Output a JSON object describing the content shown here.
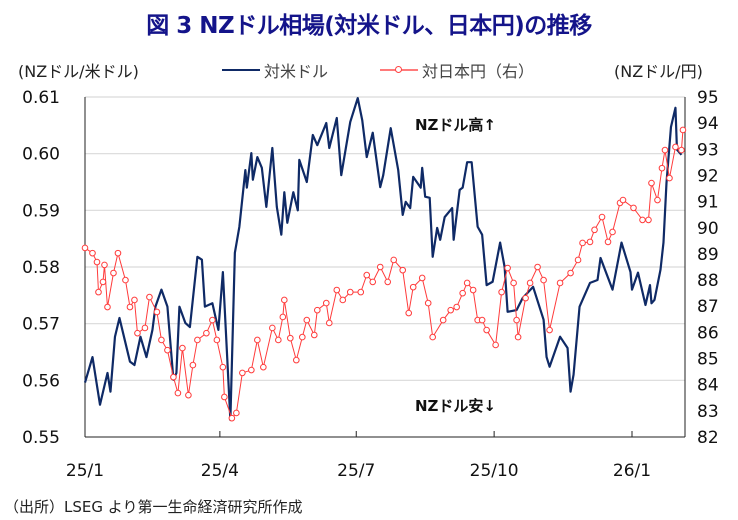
{
  "title": "図 3  NZドル相場(対米ドル、日本円)の推移",
  "source": "（出所）LSEG より第一生命経済研究所作成",
  "chart_data": {
    "type": "line",
    "title": "図 3  NZドル相場(対米ドル、日本円)の推移",
    "ylabel_left": "(NZドル/米ドル)",
    "ylabel_right": "(NZドル/円)",
    "x_unit": "days since 2025-01-01",
    "xlim": [
      0,
      400
    ],
    "x_ticks": [
      {
        "day": 0,
        "label": "25/1"
      },
      {
        "day": 90,
        "label": "25/4"
      },
      {
        "day": 181,
        "label": "25/7"
      },
      {
        "day": 273,
        "label": "25/10"
      },
      {
        "day": 365,
        "label": "26/1"
      }
    ],
    "ylim_left": [
      0.55,
      0.61
    ],
    "yticks_left": [
      "0.55",
      "0.56",
      "0.57",
      "0.58",
      "0.59",
      "0.60",
      "0.61"
    ],
    "ylim_right": [
      82,
      95
    ],
    "yticks_right": [
      "82",
      "83",
      "84",
      "85",
      "86",
      "87",
      "88",
      "89",
      "90",
      "91",
      "92",
      "93",
      "94",
      "95"
    ],
    "grid": true,
    "legend_position": "top",
    "annotations": {
      "high": "NZドル高↑",
      "low": "NZドル安↓"
    },
    "colors": {
      "usd": "#0f2a66",
      "jpy": "#ff3b3b",
      "grid": "#d9d9d9"
    },
    "series": [
      {
        "name": "対米ドル",
        "axis": "left",
        "x": [
          0,
          5,
          10,
          15,
          17,
          20,
          23,
          27,
          30,
          33,
          37,
          41,
          45,
          47,
          51,
          55,
          59,
          61,
          63,
          67,
          70,
          75,
          78,
          80,
          85,
          89,
          92,
          97,
          100,
          103,
          107,
          108,
          111,
          112,
          115,
          118,
          121,
          125,
          128,
          131,
          133,
          135,
          139,
          142,
          143,
          148,
          152,
          155,
          161,
          163,
          168,
          171,
          177,
          182,
          185,
          188,
          192,
          197,
          199,
          204,
          209,
          212,
          214,
          217,
          219,
          224,
          225,
          227,
          230,
          232,
          235,
          237,
          240,
          245,
          246,
          250,
          252,
          255,
          258,
          262,
          265,
          268,
          272,
          277,
          280,
          282,
          288,
          292,
          299,
          306,
          308,
          310,
          317,
          322,
          324,
          326,
          330,
          337,
          342,
          344,
          352,
          358,
          364,
          365,
          369,
          374,
          377,
          378,
          380,
          384,
          386,
          388,
          391,
          394,
          395,
          398
        ],
        "values": [
          0.5596,
          0.5641,
          0.5557,
          0.5613,
          0.558,
          0.5677,
          0.571,
          0.5666,
          0.5633,
          0.5627,
          0.5677,
          0.5641,
          0.5689,
          0.573,
          0.576,
          0.573,
          0.5601,
          0.5613,
          0.573,
          0.5701,
          0.5694,
          0.5818,
          0.5813,
          0.573,
          0.5736,
          0.5689,
          0.5791,
          0.553,
          0.5825,
          0.5871,
          0.5971,
          0.594,
          0.6001,
          0.5954,
          0.5994,
          0.5975,
          0.5906,
          0.601,
          0.5906,
          0.5857,
          0.5932,
          0.5878,
          0.5932,
          0.59,
          0.5989,
          0.595,
          0.6033,
          0.6015,
          0.6054,
          0.601,
          0.6063,
          0.5962,
          0.6056,
          0.6098,
          0.6059,
          0.5994,
          0.6037,
          0.5941,
          0.5962,
          0.6045,
          0.5971,
          0.5892,
          0.5915,
          0.5904,
          0.5959,
          0.594,
          0.5975,
          0.5924,
          0.5922,
          0.5818,
          0.5869,
          0.5848,
          0.5888,
          0.5904,
          0.5848,
          0.5936,
          0.594,
          0.5985,
          0.5985,
          0.5871,
          0.5857,
          0.5768,
          0.5774,
          0.5843,
          0.58,
          0.5721,
          0.5724,
          0.5745,
          0.5765,
          0.5707,
          0.5641,
          0.5624,
          0.5677,
          0.5657,
          0.558,
          0.561,
          0.573,
          0.5772,
          0.5777,
          0.5816,
          0.576,
          0.5843,
          0.5791,
          0.576,
          0.579,
          0.5733,
          0.5768,
          0.5736,
          0.5742,
          0.5795,
          0.5843,
          0.5948,
          0.6047,
          0.6081,
          0.6007,
          0.5998
        ]
      },
      {
        "name": "対日本円（右）",
        "axis": "right",
        "x": [
          0,
          5,
          8,
          9,
          12,
          13,
          15,
          19,
          22,
          27,
          30,
          33,
          35,
          40,
          43,
          48,
          51,
          55,
          59,
          62,
          65,
          69,
          72,
          75,
          81,
          85,
          88,
          92,
          93,
          98,
          101,
          105,
          111,
          115,
          119,
          125,
          129,
          132,
          133,
          137,
          141,
          145,
          148,
          153,
          155,
          161,
          163,
          168,
          172,
          177,
          184,
          188,
          192,
          197,
          202,
          206,
          212,
          216,
          219,
          225,
          229,
          232,
          239,
          244,
          248,
          252,
          255,
          259,
          262,
          265,
          268,
          274,
          278,
          282,
          286,
          288,
          289,
          294,
          297,
          302,
          306,
          310,
          317,
          324,
          329,
          332,
          337,
          340,
          345,
          349,
          352,
          357,
          359,
          366,
          372,
          376,
          378,
          382,
          385,
          387,
          390,
          394,
          398,
          399
        ],
        "values": [
          89.23,
          89.03,
          88.69,
          87.54,
          87.93,
          88.58,
          86.97,
          88.27,
          89.03,
          88.0,
          86.97,
          87.24,
          85.97,
          86.17,
          87.35,
          86.78,
          85.71,
          85.32,
          84.29,
          83.68,
          85.4,
          83.6,
          84.75,
          85.71,
          85.97,
          86.47,
          85.71,
          84.67,
          83.53,
          82.72,
          82.92,
          84.45,
          84.56,
          85.71,
          84.67,
          86.17,
          85.71,
          86.59,
          87.24,
          85.78,
          84.94,
          85.82,
          86.47,
          85.9,
          86.85,
          87.12,
          86.36,
          87.62,
          87.24,
          87.54,
          87.54,
          88.19,
          87.93,
          88.5,
          87.93,
          88.77,
          88.38,
          86.74,
          87.73,
          88.08,
          87.12,
          85.82,
          86.47,
          86.85,
          86.97,
          87.5,
          87.89,
          87.62,
          86.47,
          86.47,
          86.09,
          85.52,
          87.54,
          88.46,
          87.89,
          86.47,
          85.82,
          87.31,
          87.89,
          88.5,
          88.0,
          86.09,
          87.89,
          88.27,
          88.77,
          89.42,
          89.46,
          89.92,
          90.41,
          89.46,
          89.84,
          90.95,
          91.06,
          90.76,
          90.3,
          90.3,
          91.71,
          91.06,
          92.28,
          92.97,
          91.9,
          93.09,
          92.97,
          93.74
        ]
      }
    ]
  }
}
